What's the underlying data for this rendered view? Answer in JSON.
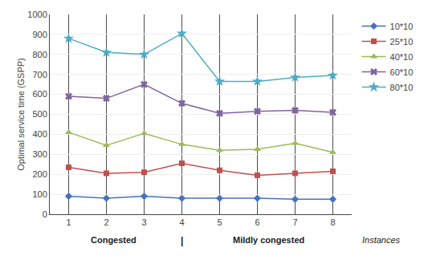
{
  "chart_data": {
    "type": "line",
    "x": [
      1,
      2,
      3,
      4,
      5,
      6,
      7,
      8
    ],
    "series": [
      {
        "name": "10*10",
        "color": "#4472C4",
        "marker": "diamond",
        "values": [
          90,
          80,
          90,
          80,
          80,
          80,
          75,
          75
        ]
      },
      {
        "name": "25*10",
        "color": "#C0504D",
        "marker": "square",
        "values": [
          235,
          205,
          210,
          255,
          220,
          195,
          205,
          215
        ]
      },
      {
        "name": "40*10",
        "color": "#9BBB59",
        "marker": "triangle-up",
        "values": [
          410,
          345,
          405,
          350,
          320,
          325,
          355,
          310
        ]
      },
      {
        "name": "60*10",
        "color": "#8064A2",
        "marker": "x",
        "values": [
          590,
          580,
          650,
          555,
          505,
          515,
          520,
          510
        ]
      },
      {
        "name": "80*10",
        "color": "#4BACC6",
        "marker": "star",
        "values": [
          880,
          810,
          800,
          905,
          665,
          665,
          685,
          695
        ]
      }
    ],
    "ylabel": "Optimal service time (GSPP)",
    "xlim": [
      0.5,
      8.5
    ],
    "xticks": [
      1,
      2,
      3,
      4,
      5,
      6,
      7,
      8
    ],
    "ylim": [
      0,
      1000
    ],
    "yticks": [
      0,
      100,
      200,
      300,
      400,
      500,
      600,
      700,
      800,
      900,
      1000
    ],
    "grid": "y",
    "legend": "right",
    "annotations": [
      "Congested",
      "|",
      "Mildly congested",
      "Instances"
    ]
  }
}
